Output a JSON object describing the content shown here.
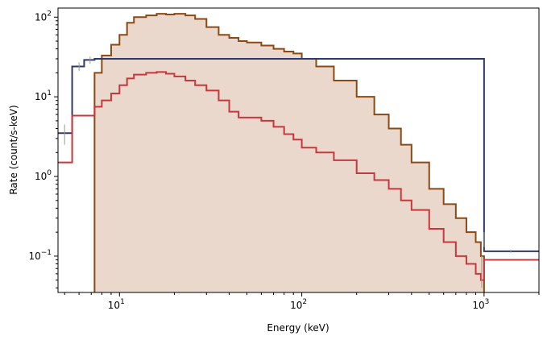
{
  "chart_data": {
    "type": "line",
    "xlabel": "Energy (keV)",
    "ylabel": "Rate (count/s-keV)",
    "xscale": "log",
    "yscale": "log",
    "xlim": [
      4.6,
      2000
    ],
    "ylim": [
      0.035,
      130
    ],
    "grid": false,
    "colors": {
      "navy": "#2e3a64",
      "red": "#c8373b",
      "brown": "#8b4a14",
      "fill": "#ead8cc",
      "errorbar": "#9a9a9a"
    },
    "x_ticks": [
      {
        "value": 10,
        "base": "10",
        "exp": "1"
      },
      {
        "value": 100,
        "base": "10",
        "exp": "2"
      },
      {
        "value": 1000,
        "base": "10",
        "exp": "3"
      }
    ],
    "y_ticks": [
      {
        "value": 0.1,
        "base": "10",
        "exp": "−1"
      },
      {
        "value": 1,
        "base": "10",
        "exp": "0"
      },
      {
        "value": 10,
        "base": "10",
        "exp": "1"
      },
      {
        "value": 100,
        "base": "10",
        "exp": "2"
      }
    ],
    "series": [
      {
        "color": "navy",
        "style": "step",
        "x": [
          4.6,
          5.5,
          6.4,
          7.3,
          1000,
          2000
        ],
        "y": [
          3.5,
          24,
          29,
          30,
          0.115,
          0.115
        ]
      },
      {
        "color": "red",
        "style": "step",
        "x": [
          4.6,
          5.5,
          7.3,
          8,
          9,
          10,
          11,
          12,
          14,
          16,
          18,
          20,
          23,
          26,
          30,
          35,
          40,
          45,
          50,
          60,
          70,
          80,
          90,
          100,
          120,
          150,
          200,
          250,
          300,
          350,
          400,
          500,
          600,
          700,
          800,
          900,
          960,
          1000,
          2000
        ],
        "y": [
          1.5,
          5.8,
          7.5,
          9,
          11,
          14,
          17,
          19,
          20,
          20.5,
          19.5,
          18,
          16,
          14,
          12,
          9,
          6.5,
          5.5,
          5.5,
          5,
          4.2,
          3.4,
          2.9,
          2.3,
          2.0,
          1.6,
          1.1,
          0.9,
          0.7,
          0.5,
          0.38,
          0.22,
          0.15,
          0.1,
          0.08,
          0.06,
          0.05,
          0.09,
          0.09
        ]
      },
      {
        "color": "brown",
        "style": "step-filled",
        "x": [
          7.3,
          8,
          9,
          10,
          11,
          12,
          14,
          16,
          18,
          20,
          23,
          26,
          30,
          35,
          40,
          45,
          50,
          60,
          70,
          80,
          90,
          100,
          120,
          150,
          200,
          250,
          300,
          350,
          400,
          500,
          600,
          700,
          800,
          900,
          960,
          1000
        ],
        "y": [
          20,
          33,
          45,
          60,
          85,
          100,
          105,
          110,
          108,
          110,
          105,
          95,
          75,
          60,
          55,
          50,
          48,
          44,
          40,
          37,
          35,
          30,
          24,
          16,
          10,
          6,
          4,
          2.5,
          1.5,
          0.7,
          0.45,
          0.3,
          0.2,
          0.15,
          0.1,
          0.1
        ]
      }
    ],
    "error_points": [
      {
        "x": 5.0,
        "y": 3.5,
        "ylo": 2.5,
        "yhi": 4.5
      },
      {
        "x": 6.0,
        "y": 24,
        "ylo": 21,
        "yhi": 27
      },
      {
        "x": 6.9,
        "y": 29,
        "ylo": 26,
        "yhi": 32
      },
      {
        "x": 970,
        "y": 0.07,
        "ylo": 0.04,
        "yhi": 0.1
      },
      {
        "x": 1000,
        "y": 0.16,
        "ylo": 0.13,
        "yhi": 0.2
      },
      {
        "x": 1400,
        "y": 0.115,
        "ylo": 0.11,
        "yhi": 0.12
      }
    ]
  }
}
